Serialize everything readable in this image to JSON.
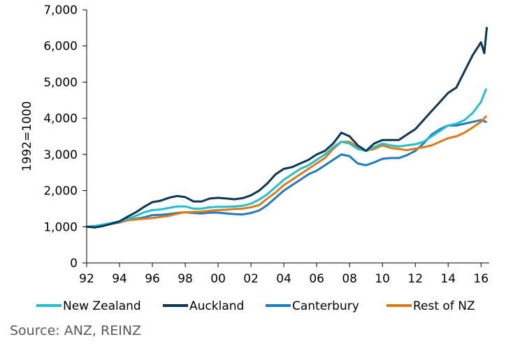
{
  "chart_data": {
    "type": "line",
    "ylabel": "1992=1000",
    "xlabel": "",
    "xlim": [
      1992,
      2016.5
    ],
    "ylim": [
      0,
      7000
    ],
    "x_tick_labels": [
      "92",
      "94",
      "96",
      "98",
      "00",
      "02",
      "04",
      "06",
      "08",
      "10",
      "12",
      "14",
      "16"
    ],
    "x_tick_values": [
      1992,
      1994,
      1996,
      1998,
      2000,
      2002,
      2004,
      2006,
      2008,
      2010,
      2012,
      2014,
      2016
    ],
    "y_tick_labels": [
      "0",
      "1,000",
      "2,000",
      "3,000",
      "4,000",
      "5,000",
      "6,000",
      "7,000"
    ],
    "y_tick_values": [
      0,
      1000,
      2000,
      3000,
      4000,
      5000,
      6000,
      7000
    ],
    "legend_position": "bottom",
    "series": [
      {
        "name": "Canterbury",
        "color": "#1f7bbf",
        "points": [
          [
            1992,
            1000
          ],
          [
            1992.5,
            980
          ],
          [
            1993,
            1040
          ],
          [
            1993.5,
            1080
          ],
          [
            1994,
            1120
          ],
          [
            1994.5,
            1180
          ],
          [
            1995,
            1220
          ],
          [
            1995.5,
            1260
          ],
          [
            1996,
            1320
          ],
          [
            1996.5,
            1330
          ],
          [
            1997,
            1350
          ],
          [
            1997.5,
            1380
          ],
          [
            1998,
            1400
          ],
          [
            1998.5,
            1380
          ],
          [
            1999,
            1370
          ],
          [
            1999.5,
            1390
          ],
          [
            2000,
            1390
          ],
          [
            2000.5,
            1370
          ],
          [
            2001,
            1350
          ],
          [
            2001.5,
            1340
          ],
          [
            2002,
            1380
          ],
          [
            2002.5,
            1450
          ],
          [
            2003,
            1600
          ],
          [
            2003.5,
            1800
          ],
          [
            2004,
            2000
          ],
          [
            2004.5,
            2150
          ],
          [
            2005,
            2300
          ],
          [
            2005.5,
            2450
          ],
          [
            2006,
            2550
          ],
          [
            2006.5,
            2700
          ],
          [
            2007,
            2850
          ],
          [
            2007.5,
            3000
          ],
          [
            2008,
            2950
          ],
          [
            2008.5,
            2750
          ],
          [
            2009,
            2700
          ],
          [
            2009.5,
            2780
          ],
          [
            2010,
            2880
          ],
          [
            2010.5,
            2900
          ],
          [
            2011,
            2900
          ],
          [
            2011.5,
            2980
          ],
          [
            2012,
            3100
          ],
          [
            2012.5,
            3300
          ],
          [
            2013,
            3550
          ],
          [
            2013.5,
            3700
          ],
          [
            2014,
            3800
          ],
          [
            2014.5,
            3800
          ],
          [
            2015,
            3850
          ],
          [
            2015.5,
            3900
          ],
          [
            2016,
            3950
          ],
          [
            2016.3,
            3900
          ]
        ]
      },
      {
        "name": "Rest of NZ",
        "color": "#e07b14",
        "points": [
          [
            1992,
            1000
          ],
          [
            1992.5,
            1020
          ],
          [
            1993,
            1060
          ],
          [
            1993.5,
            1100
          ],
          [
            1994,
            1140
          ],
          [
            1994.5,
            1180
          ],
          [
            1995,
            1200
          ],
          [
            1995.5,
            1220
          ],
          [
            1996,
            1240
          ],
          [
            1996.5,
            1270
          ],
          [
            1997,
            1300
          ],
          [
            1997.5,
            1360
          ],
          [
            1998,
            1400
          ],
          [
            1998.5,
            1410
          ],
          [
            1999,
            1420
          ],
          [
            1999.5,
            1440
          ],
          [
            2000,
            1460
          ],
          [
            2000.5,
            1470
          ],
          [
            2001,
            1490
          ],
          [
            2001.5,
            1500
          ],
          [
            2002,
            1540
          ],
          [
            2002.5,
            1600
          ],
          [
            2003,
            1780
          ],
          [
            2003.5,
            1950
          ],
          [
            2004,
            2150
          ],
          [
            2004.5,
            2300
          ],
          [
            2005,
            2450
          ],
          [
            2005.5,
            2600
          ],
          [
            2006,
            2750
          ],
          [
            2006.5,
            2900
          ],
          [
            2007,
            3150
          ],
          [
            2007.5,
            3350
          ],
          [
            2008,
            3350
          ],
          [
            2008.5,
            3200
          ],
          [
            2009,
            3100
          ],
          [
            2009.5,
            3150
          ],
          [
            2010,
            3250
          ],
          [
            2010.5,
            3180
          ],
          [
            2011,
            3150
          ],
          [
            2011.5,
            3120
          ],
          [
            2012,
            3160
          ],
          [
            2012.5,
            3200
          ],
          [
            2013,
            3250
          ],
          [
            2013.5,
            3350
          ],
          [
            2014,
            3450
          ],
          [
            2014.5,
            3500
          ],
          [
            2015,
            3600
          ],
          [
            2015.5,
            3750
          ],
          [
            2016,
            3900
          ],
          [
            2016.3,
            4050
          ]
        ]
      },
      {
        "name": "New Zealand",
        "color": "#22c0cc",
        "points": [
          [
            1992,
            1000
          ],
          [
            1992.5,
            1020
          ],
          [
            1993,
            1060
          ],
          [
            1993.5,
            1100
          ],
          [
            1994,
            1150
          ],
          [
            1994.5,
            1220
          ],
          [
            1995,
            1300
          ],
          [
            1995.5,
            1400
          ],
          [
            1996,
            1460
          ],
          [
            1996.5,
            1480
          ],
          [
            1997,
            1520
          ],
          [
            1997.5,
            1560
          ],
          [
            1998,
            1560
          ],
          [
            1998.5,
            1500
          ],
          [
            1999,
            1500
          ],
          [
            1999.5,
            1540
          ],
          [
            2000,
            1550
          ],
          [
            2000.5,
            1550
          ],
          [
            2001,
            1560
          ],
          [
            2001.5,
            1580
          ],
          [
            2002,
            1640
          ],
          [
            2002.5,
            1750
          ],
          [
            2003,
            1900
          ],
          [
            2003.5,
            2100
          ],
          [
            2004,
            2300
          ],
          [
            2004.5,
            2450
          ],
          [
            2005,
            2600
          ],
          [
            2005.5,
            2700
          ],
          [
            2006,
            2850
          ],
          [
            2006.5,
            3000
          ],
          [
            2007,
            3200
          ],
          [
            2007.5,
            3350
          ],
          [
            2008,
            3300
          ],
          [
            2008.5,
            3150
          ],
          [
            2009,
            3100
          ],
          [
            2009.5,
            3200
          ],
          [
            2010,
            3300
          ],
          [
            2010.5,
            3250
          ],
          [
            2011,
            3220
          ],
          [
            2011.5,
            3250
          ],
          [
            2012,
            3280
          ],
          [
            2012.5,
            3350
          ],
          [
            2013,
            3500
          ],
          [
            2013.5,
            3650
          ],
          [
            2014,
            3800
          ],
          [
            2014.5,
            3850
          ],
          [
            2015,
            3950
          ],
          [
            2015.5,
            4150
          ],
          [
            2016,
            4450
          ],
          [
            2016.3,
            4800
          ]
        ]
      },
      {
        "name": "Auckland",
        "color": "#0c3654",
        "points": [
          [
            1992,
            1000
          ],
          [
            1992.5,
            980
          ],
          [
            1993,
            1020
          ],
          [
            1993.5,
            1080
          ],
          [
            1994,
            1150
          ],
          [
            1994.5,
            1280
          ],
          [
            1995,
            1400
          ],
          [
            1995.5,
            1550
          ],
          [
            1996,
            1680
          ],
          [
            1996.5,
            1720
          ],
          [
            1997,
            1800
          ],
          [
            1997.5,
            1850
          ],
          [
            1998,
            1820
          ],
          [
            1998.5,
            1700
          ],
          [
            1999,
            1700
          ],
          [
            1999.5,
            1780
          ],
          [
            2000,
            1800
          ],
          [
            2000.5,
            1780
          ],
          [
            2001,
            1760
          ],
          [
            2001.5,
            1790
          ],
          [
            2002,
            1870
          ],
          [
            2002.5,
            2000
          ],
          [
            2003,
            2200
          ],
          [
            2003.5,
            2450
          ],
          [
            2004,
            2600
          ],
          [
            2004.5,
            2650
          ],
          [
            2005,
            2750
          ],
          [
            2005.5,
            2850
          ],
          [
            2006,
            3000
          ],
          [
            2006.5,
            3100
          ],
          [
            2007,
            3300
          ],
          [
            2007.5,
            3600
          ],
          [
            2008,
            3500
          ],
          [
            2008.5,
            3250
          ],
          [
            2009,
            3100
          ],
          [
            2009.5,
            3300
          ],
          [
            2010,
            3400
          ],
          [
            2010.5,
            3400
          ],
          [
            2011,
            3400
          ],
          [
            2011.5,
            3550
          ],
          [
            2012,
            3700
          ],
          [
            2012.5,
            3950
          ],
          [
            2013,
            4200
          ],
          [
            2013.5,
            4450
          ],
          [
            2014,
            4700
          ],
          [
            2014.5,
            4850
          ],
          [
            2015,
            5300
          ],
          [
            2015.5,
            5750
          ],
          [
            2016,
            6100
          ],
          [
            2016.2,
            5800
          ],
          [
            2016.35,
            6500
          ]
        ]
      }
    ],
    "legend_order": [
      "New Zealand",
      "Auckland",
      "Canterbury",
      "Rest of NZ"
    ]
  },
  "source": "Source: ANZ, REINZ"
}
